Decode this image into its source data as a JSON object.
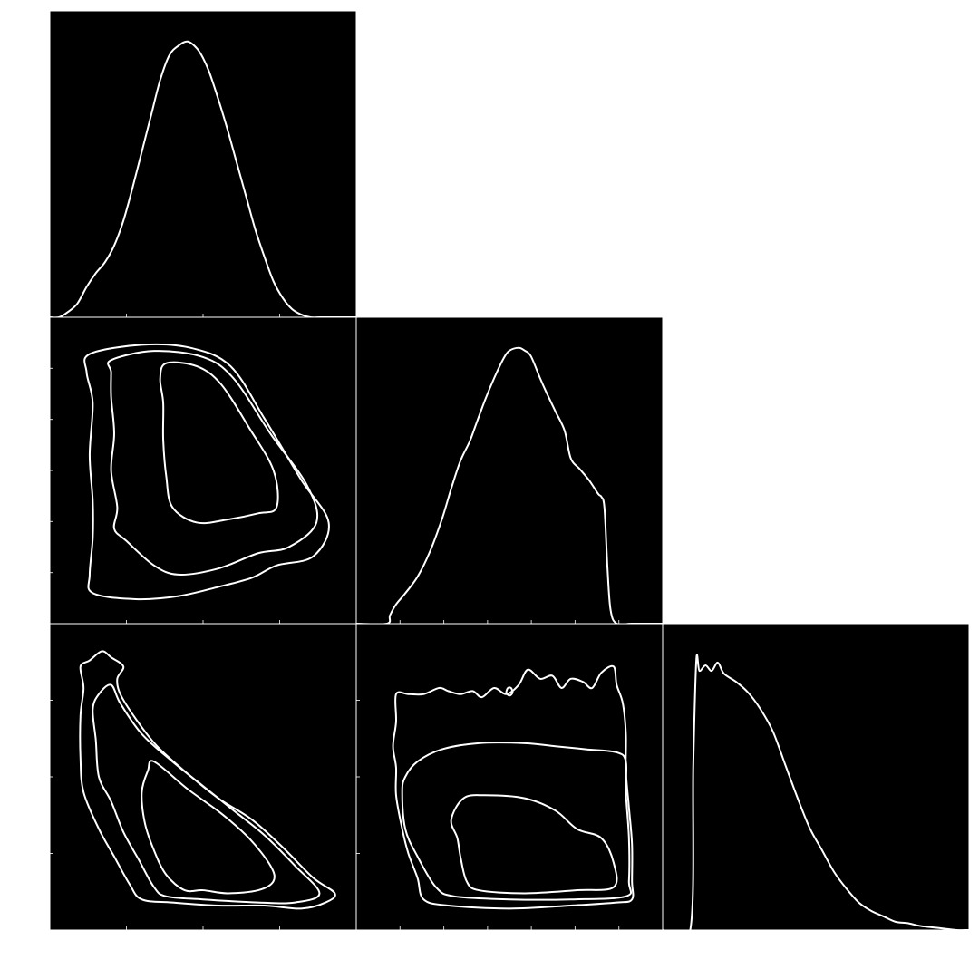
{
  "figure": {
    "kind": "corner-plot",
    "background": "#000000",
    "line_color": "#ffffff",
    "page_color": "#ffffff"
  },
  "chart_data": [
    {
      "panel": "p00",
      "row": 0,
      "col": 0,
      "type": "line",
      "role": "1d-marginal",
      "title": "",
      "xlabel": "",
      "ylabel": "",
      "xlim": [
        0,
        1
      ],
      "ylim": [
        0,
        1
      ],
      "x": [
        0.0,
        0.03,
        0.06,
        0.09,
        0.12,
        0.15,
        0.18,
        0.21,
        0.24,
        0.27,
        0.3,
        0.33,
        0.36,
        0.39,
        0.42,
        0.45,
        0.48,
        0.5,
        0.52,
        0.55,
        0.58,
        0.61,
        0.64,
        0.67,
        0.7,
        0.73,
        0.76,
        0.79,
        0.82,
        0.85,
        0.88,
        0.91,
        0.94,
        0.97,
        1.0
      ],
      "values": [
        0.0,
        0.0,
        0.02,
        0.05,
        0.11,
        0.16,
        0.2,
        0.26,
        0.35,
        0.47,
        0.6,
        0.73,
        0.86,
        0.95,
        0.985,
        1.0,
        0.975,
        0.94,
        0.89,
        0.79,
        0.68,
        0.56,
        0.44,
        0.32,
        0.22,
        0.13,
        0.07,
        0.03,
        0.01,
        0.0,
        0.0,
        0.0,
        0.0,
        0.0,
        0.0
      ],
      "xticks": 3,
      "yticks": 0
    },
    {
      "panel": "p10",
      "row": 1,
      "col": 0,
      "type": "contour",
      "role": "2d-density",
      "title": "",
      "xlabel": "",
      "ylabel": "",
      "xlim": [
        0,
        1
      ],
      "ylim": [
        0,
        1
      ],
      "levels": [
        {
          "name": "",
          "closed": true,
          "points": [
            [
              0.13,
              0.88
            ],
            [
              0.3,
              0.91
            ],
            [
              0.46,
              0.9
            ],
            [
              0.59,
              0.84
            ],
            [
              0.7,
              0.67
            ],
            [
              0.82,
              0.47
            ],
            [
              0.91,
              0.33
            ],
            [
              0.86,
              0.22
            ],
            [
              0.74,
              0.19
            ],
            [
              0.66,
              0.15
            ],
            [
              0.55,
              0.12
            ],
            [
              0.42,
              0.09
            ],
            [
              0.28,
              0.08
            ],
            [
              0.14,
              0.1
            ],
            [
              0.13,
              0.16
            ],
            [
              0.14,
              0.28
            ],
            [
              0.14,
              0.4
            ],
            [
              0.13,
              0.55
            ],
            [
              0.14,
              0.72
            ],
            [
              0.12,
              0.82
            ]
          ]
        },
        {
          "name": "",
          "closed": true,
          "points": [
            [
              0.2,
              0.86
            ],
            [
              0.34,
              0.89
            ],
            [
              0.5,
              0.87
            ],
            [
              0.6,
              0.8
            ],
            [
              0.72,
              0.62
            ],
            [
              0.84,
              0.45
            ],
            [
              0.87,
              0.33
            ],
            [
              0.78,
              0.25
            ],
            [
              0.68,
              0.23
            ],
            [
              0.55,
              0.18
            ],
            [
              0.42,
              0.16
            ],
            [
              0.34,
              0.19
            ],
            [
              0.25,
              0.27
            ],
            [
              0.21,
              0.31
            ],
            [
              0.22,
              0.38
            ],
            [
              0.2,
              0.5
            ],
            [
              0.21,
              0.62
            ],
            [
              0.2,
              0.74
            ],
            [
              0.2,
              0.82
            ]
          ]
        },
        {
          "name": "",
          "closed": true,
          "points": [
            [
              0.38,
              0.85
            ],
            [
              0.48,
              0.84
            ],
            [
              0.56,
              0.78
            ],
            [
              0.65,
              0.64
            ],
            [
              0.73,
              0.5
            ],
            [
              0.74,
              0.38
            ],
            [
              0.68,
              0.36
            ],
            [
              0.58,
              0.34
            ],
            [
              0.48,
              0.33
            ],
            [
              0.4,
              0.38
            ],
            [
              0.38,
              0.48
            ],
            [
              0.37,
              0.6
            ],
            [
              0.37,
              0.72
            ],
            [
              0.36,
              0.8
            ]
          ]
        }
      ],
      "xticks": 3,
      "yticks": 5
    },
    {
      "panel": "p11",
      "row": 1,
      "col": 1,
      "type": "line",
      "role": "1d-marginal",
      "title": "",
      "xlabel": "",
      "ylabel": "",
      "xlim": [
        0,
        1
      ],
      "ylim": [
        0,
        1
      ],
      "x": [
        0.0,
        0.1,
        0.11,
        0.13,
        0.16,
        0.2,
        0.24,
        0.28,
        0.31,
        0.34,
        0.37,
        0.39,
        0.42,
        0.45,
        0.48,
        0.5,
        0.53,
        0.55,
        0.57,
        0.6,
        0.62,
        0.65,
        0.68,
        0.7,
        0.73,
        0.76,
        0.79,
        0.8,
        0.81,
        0.82,
        0.83,
        0.85,
        0.9,
        1.0
      ],
      "values": [
        0.0,
        0.0,
        0.03,
        0.07,
        0.11,
        0.17,
        0.26,
        0.38,
        0.49,
        0.59,
        0.66,
        0.72,
        0.81,
        0.89,
        0.96,
        0.99,
        1.0,
        0.99,
        0.97,
        0.89,
        0.84,
        0.77,
        0.7,
        0.6,
        0.56,
        0.52,
        0.47,
        0.46,
        0.42,
        0.2,
        0.05,
        0.0,
        0.0,
        0.0
      ],
      "xticks": 6,
      "yticks": 0
    },
    {
      "panel": "p20",
      "row": 2,
      "col": 0,
      "type": "contour",
      "role": "2d-density",
      "title": "",
      "xlabel": "",
      "ylabel": "",
      "xlim": [
        0,
        1
      ],
      "ylim": [
        0,
        1
      ],
      "levels": [
        {
          "name": "",
          "closed": true,
          "points": [
            [
              0.1,
              0.86
            ],
            [
              0.13,
              0.88
            ],
            [
              0.17,
              0.91
            ],
            [
              0.2,
              0.89
            ],
            [
              0.24,
              0.86
            ],
            [
              0.22,
              0.82
            ],
            [
              0.23,
              0.77
            ],
            [
              0.28,
              0.69
            ],
            [
              0.35,
              0.6
            ],
            [
              0.45,
              0.51
            ],
            [
              0.55,
              0.43
            ],
            [
              0.66,
              0.36
            ],
            [
              0.76,
              0.27
            ],
            [
              0.86,
              0.17
            ],
            [
              0.93,
              0.12
            ],
            [
              0.9,
              0.09
            ],
            [
              0.82,
              0.07
            ],
            [
              0.7,
              0.08
            ],
            [
              0.55,
              0.08
            ],
            [
              0.4,
              0.09
            ],
            [
              0.3,
              0.1
            ],
            [
              0.26,
              0.15
            ],
            [
              0.21,
              0.24
            ],
            [
              0.16,
              0.33
            ],
            [
              0.11,
              0.45
            ],
            [
              0.1,
              0.56
            ],
            [
              0.1,
              0.7
            ],
            [
              0.11,
              0.79
            ]
          ]
        },
        {
          "name": "",
          "closed": true,
          "points": [
            [
              0.16,
              0.77
            ],
            [
              0.2,
              0.8
            ],
            [
              0.23,
              0.74
            ],
            [
              0.3,
              0.64
            ],
            [
              0.4,
              0.55
            ],
            [
              0.5,
              0.47
            ],
            [
              0.6,
              0.39
            ],
            [
              0.7,
              0.31
            ],
            [
              0.8,
              0.21
            ],
            [
              0.88,
              0.12
            ],
            [
              0.8,
              0.09
            ],
            [
              0.68,
              0.09
            ],
            [
              0.5,
              0.1
            ],
            [
              0.38,
              0.11
            ],
            [
              0.34,
              0.14
            ],
            [
              0.29,
              0.23
            ],
            [
              0.24,
              0.32
            ],
            [
              0.2,
              0.42
            ],
            [
              0.16,
              0.5
            ],
            [
              0.15,
              0.62
            ],
            [
              0.14,
              0.72
            ]
          ]
        },
        {
          "name": "",
          "closed": true,
          "points": [
            [
              0.34,
              0.55
            ],
            [
              0.45,
              0.46
            ],
            [
              0.56,
              0.38
            ],
            [
              0.65,
              0.3
            ],
            [
              0.72,
              0.21
            ],
            [
              0.73,
              0.16
            ],
            [
              0.68,
              0.13
            ],
            [
              0.58,
              0.12
            ],
            [
              0.5,
              0.13
            ],
            [
              0.44,
              0.13
            ],
            [
              0.38,
              0.18
            ],
            [
              0.34,
              0.26
            ],
            [
              0.31,
              0.35
            ],
            [
              0.3,
              0.45
            ],
            [
              0.32,
              0.52
            ]
          ]
        }
      ],
      "xticks": 3,
      "yticks": 3
    },
    {
      "panel": "p21",
      "row": 2,
      "col": 1,
      "type": "contour",
      "role": "2d-density",
      "title": "",
      "xlabel": "",
      "ylabel": "",
      "xlim": [
        0,
        1
      ],
      "ylim": [
        0,
        1
      ],
      "levels": [
        {
          "name": "",
          "closed": true,
          "points": [
            [
              0.13,
              0.77
            ],
            [
              0.17,
              0.77
            ],
            [
              0.22,
              0.77
            ],
            [
              0.27,
              0.79
            ],
            [
              0.3,
              0.78
            ],
            [
              0.34,
              0.77
            ],
            [
              0.38,
              0.78
            ],
            [
              0.41,
              0.76
            ],
            [
              0.45,
              0.79
            ],
            [
              0.49,
              0.77
            ],
            [
              0.53,
              0.8
            ],
            [
              0.56,
              0.85
            ],
            [
              0.6,
              0.82
            ],
            [
              0.64,
              0.83
            ],
            [
              0.67,
              0.79
            ],
            [
              0.7,
              0.82
            ],
            [
              0.74,
              0.81
            ],
            [
              0.77,
              0.79
            ],
            [
              0.8,
              0.84
            ],
            [
              0.84,
              0.86
            ],
            [
              0.85,
              0.8
            ],
            [
              0.87,
              0.74
            ],
            [
              0.88,
              0.64
            ],
            [
              0.88,
              0.52
            ],
            [
              0.89,
              0.4
            ],
            [
              0.9,
              0.28
            ],
            [
              0.9,
              0.16
            ],
            [
              0.9,
              0.1
            ],
            [
              0.85,
              0.09
            ],
            [
              0.7,
              0.08
            ],
            [
              0.5,
              0.07
            ],
            [
              0.3,
              0.08
            ],
            [
              0.22,
              0.1
            ],
            [
              0.2,
              0.17
            ],
            [
              0.17,
              0.25
            ],
            [
              0.15,
              0.33
            ],
            [
              0.13,
              0.44
            ],
            [
              0.13,
              0.53
            ],
            [
              0.12,
              0.6
            ],
            [
              0.13,
              0.68
            ]
          ]
        },
        {
          "name": "",
          "closed": true,
          "points": [
            [
              0.28,
              0.59
            ],
            [
              0.4,
              0.61
            ],
            [
              0.55,
              0.61
            ],
            [
              0.65,
              0.6
            ],
            [
              0.75,
              0.59
            ],
            [
              0.85,
              0.58
            ],
            [
              0.88,
              0.55
            ],
            [
              0.88,
              0.45
            ],
            [
              0.89,
              0.3
            ],
            [
              0.89,
              0.16
            ],
            [
              0.88,
              0.11
            ],
            [
              0.7,
              0.1
            ],
            [
              0.5,
              0.1
            ],
            [
              0.32,
              0.11
            ],
            [
              0.26,
              0.14
            ],
            [
              0.2,
              0.24
            ],
            [
              0.16,
              0.33
            ],
            [
              0.15,
              0.45
            ],
            [
              0.16,
              0.5
            ],
            [
              0.2,
              0.55
            ]
          ]
        },
        {
          "name": "",
          "closed": true,
          "points": [
            [
              0.35,
              0.43
            ],
            [
              0.42,
              0.44
            ],
            [
              0.55,
              0.43
            ],
            [
              0.65,
              0.39
            ],
            [
              0.72,
              0.33
            ],
            [
              0.8,
              0.3
            ],
            [
              0.84,
              0.22
            ],
            [
              0.84,
              0.14
            ],
            [
              0.72,
              0.13
            ],
            [
              0.55,
              0.12
            ],
            [
              0.4,
              0.13
            ],
            [
              0.36,
              0.16
            ],
            [
              0.34,
              0.24
            ],
            [
              0.33,
              0.3
            ],
            [
              0.31,
              0.36
            ]
          ]
        },
        {
          "name": "",
          "closed": true,
          "points": [
            [
              0.495,
              0.79
            ],
            [
              0.505,
              0.79
            ],
            [
              0.51,
              0.775
            ],
            [
              0.5,
              0.765
            ],
            [
              0.49,
              0.775
            ]
          ]
        }
      ],
      "xticks": 6,
      "yticks": 3
    },
    {
      "panel": "p22",
      "row": 2,
      "col": 2,
      "type": "line",
      "role": "1d-marginal",
      "title": "",
      "xlabel": "",
      "ylabel": "",
      "xlim": [
        0,
        1
      ],
      "ylim": [
        0,
        1
      ],
      "x": [
        0.0,
        0.09,
        0.1,
        0.11,
        0.12,
        0.14,
        0.16,
        0.18,
        0.2,
        0.24,
        0.28,
        0.32,
        0.36,
        0.4,
        0.44,
        0.48,
        0.52,
        0.56,
        0.6,
        0.64,
        0.68,
        0.72,
        0.76,
        0.8,
        0.84,
        0.88,
        0.92,
        0.96,
        1.0
      ],
      "values": [
        0.0,
        0.0,
        0.6,
        0.98,
        0.94,
        0.96,
        0.94,
        0.97,
        0.93,
        0.9,
        0.86,
        0.8,
        0.72,
        0.6,
        0.48,
        0.37,
        0.29,
        0.21,
        0.15,
        0.1,
        0.07,
        0.05,
        0.03,
        0.025,
        0.015,
        0.01,
        0.005,
        0.0,
        0.0
      ],
      "xticks": 0,
      "yticks": 0
    }
  ]
}
